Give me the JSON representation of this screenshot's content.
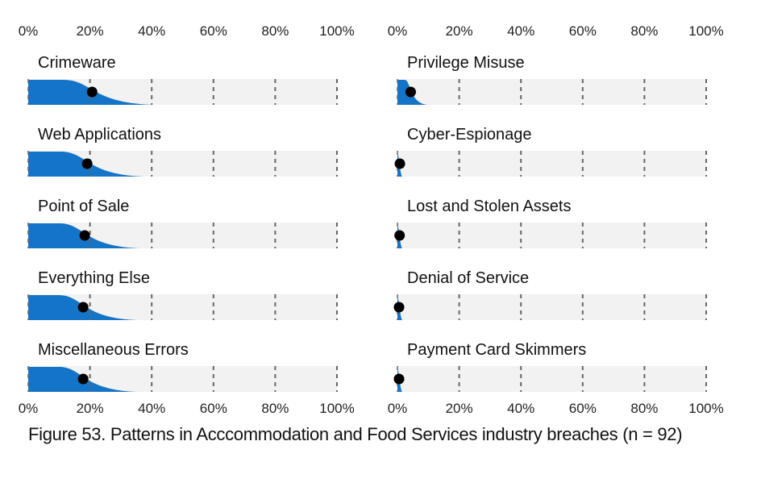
{
  "chart_data": [
    {
      "type": "slab",
      "xlim": [
        0,
        100
      ],
      "ticks": [
        "0%",
        "20%",
        "40%",
        "60%",
        "80%",
        "100%"
      ],
      "categories": [
        "Crimeware",
        "Web Applications",
        "Point of Sale",
        "Everything Else",
        "Miscellaneous Errors"
      ],
      "values": [
        20.7,
        19.1,
        18.3,
        17.8,
        17.8
      ]
    },
    {
      "type": "slab",
      "xlim": [
        0,
        100
      ],
      "ticks": [
        "0%",
        "20%",
        "40%",
        "60%",
        "80%",
        "100%"
      ],
      "categories": [
        "Privilege Misuse",
        "Cyber-Espionage",
        "Lost and Stolen Assets",
        "Denial of Service",
        "Payment Card Skimmers"
      ],
      "values": [
        4.3,
        0.8,
        0.7,
        0.2,
        0.2
      ]
    }
  ],
  "caption": "Figure 53. Patterns in Acccommodation and Food Services industry breaches (n = 92)",
  "colors": {
    "fill": "#1474c8",
    "band": "#f2f2f2",
    "grid": "#666666",
    "dot": "#000000"
  }
}
